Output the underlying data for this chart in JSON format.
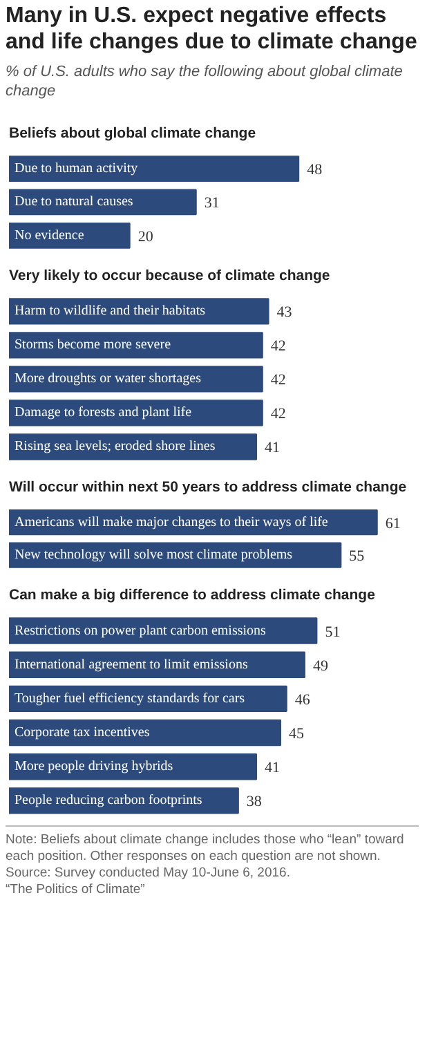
{
  "chart_data": [
    {
      "type": "other",
      "title": "Many in U.S. expect negative effects and life changes due to climate change",
      "subtitle": "% of U.S. adults who say the following about global climate change"
    },
    {
      "type": "bar",
      "orientation": "horizontal",
      "title": "Beliefs about global climate change",
      "color": "#2c4b7c",
      "data_labels": true,
      "categories": [
        "Due to human activity",
        "Due to natural causes",
        "No evidence"
      ],
      "values": [
        48,
        31,
        20
      ]
    },
    {
      "type": "bar",
      "orientation": "horizontal",
      "title": "Very likely to occur because of climate change",
      "color": "#2c4b7c",
      "data_labels": true,
      "categories": [
        "Harm to wildlife and their habitats",
        "Storms become more severe",
        "More droughts or water shortages",
        "Damage to forests and plant life",
        "Rising sea levels; eroded shore lines"
      ],
      "values": [
        43,
        42,
        42,
        42,
        41
      ]
    },
    {
      "type": "bar",
      "orientation": "horizontal",
      "title": "Will occur within next 50 years to address climate change",
      "color": "#2c4b7c",
      "data_labels": true,
      "categories": [
        "Americans will make major changes to their ways of life",
        "New technology will solve most climate  problems"
      ],
      "values": [
        61,
        55
      ]
    },
    {
      "type": "bar",
      "orientation": "horizontal",
      "title": "Can make a big difference to address climate change",
      "color": "#2c4b7c",
      "data_labels": true,
      "categories": [
        "Restrictions on power plant carbon emissions",
        "International agreement to limit emissions",
        "Tougher fuel efficiency standards for cars",
        "Corporate tax incentives",
        "More people driving hybrids",
        "People reducing carbon footprints"
      ],
      "values": [
        51,
        49,
        46,
        45,
        41,
        38
      ]
    },
    {
      "type": "other",
      "annotations": [
        "Note: Beliefs about climate change includes those who “lean” toward each position. Other responses on each question are not shown.",
        "Source: Survey conducted May 10-June 6, 2016.",
        "“The Politics of Climate”"
      ]
    }
  ]
}
